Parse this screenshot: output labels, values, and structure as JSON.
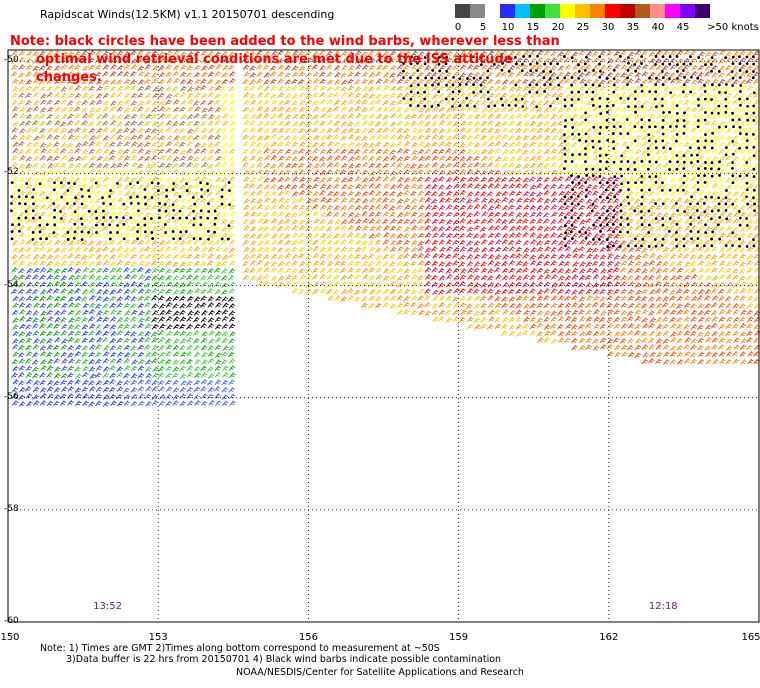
{
  "header": {
    "title": "Rapidscat Winds(12.5KM) v1.1 20150701 descending"
  },
  "note": {
    "line1": "Note: black circles have been added to the wind barbs, wherever less than",
    "line2": "optimal wind retrieval conditions are met due to the ISS attitude changes."
  },
  "legend": {
    "unit": ">50 knots",
    "colors": [
      "#444444",
      "#888888",
      "#ffffff",
      "#2a2aff",
      "#00bfff",
      "#00a000",
      "#40e040",
      "#ffff00",
      "#ffc000",
      "#ff8000",
      "#ff0000",
      "#c00000",
      "#b05a1e",
      "#ff8c8c",
      "#ff00ff",
      "#8000ff",
      "#3d0070"
    ],
    "ticks": [
      "0",
      "5",
      "10",
      "15",
      "20",
      "25",
      "30",
      "35",
      "40",
      "45",
      ">50 knots"
    ]
  },
  "map": {
    "lon_range": [
      150,
      165
    ],
    "lat_range": [
      -60,
      -49.8
    ],
    "lon_labels": [
      "150",
      "153",
      "156",
      "159",
      "162",
      "165"
    ],
    "lat_labels": [
      "-50",
      "-52",
      "-54",
      "-56",
      "-58",
      "-60"
    ],
    "grid": "dotted",
    "times": [
      {
        "label": "13:52",
        "lon": 151.7
      },
      {
        "label": "12:18",
        "lon": 162.8
      }
    ]
  },
  "footer": {
    "note1": "Note: 1) Times are GMT 2)Times along bottom correspond to measurement at ~50S",
    "note2": "3)Data buffer is 22 hrs from 20150701 4) Black wind barbs indicate possible contamination",
    "credit": "NOAA/NESDIS/Center for Satellite Applications and Research"
  }
}
